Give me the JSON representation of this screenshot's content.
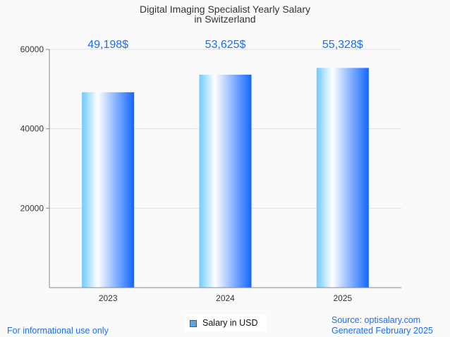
{
  "chart_data": {
    "type": "bar",
    "title": "Digital Imaging Specialist Yearly Salary",
    "subtitle": "in Switzerland",
    "categories": [
      "2023",
      "2024",
      "2025"
    ],
    "values": [
      49198,
      53625,
      55328
    ],
    "data_labels": [
      "49,198$",
      "53,625$",
      "55,328$"
    ],
    "yticks": [
      20000,
      40000,
      60000
    ],
    "ylim": [
      0,
      60000
    ],
    "xlabel": "",
    "ylabel": "",
    "grid": true,
    "legend": {
      "label": "Salary in USD",
      "placement": "bottom-center"
    },
    "colors": {
      "label": "#1a6ef5",
      "bar_start": "#6ecbff",
      "bar_mid": "#ffffff",
      "bar_end": "#1166ff"
    }
  },
  "footer": {
    "left": "For informational use only",
    "source": "Source: optisalary.com",
    "generated": "Generated February 2025"
  }
}
